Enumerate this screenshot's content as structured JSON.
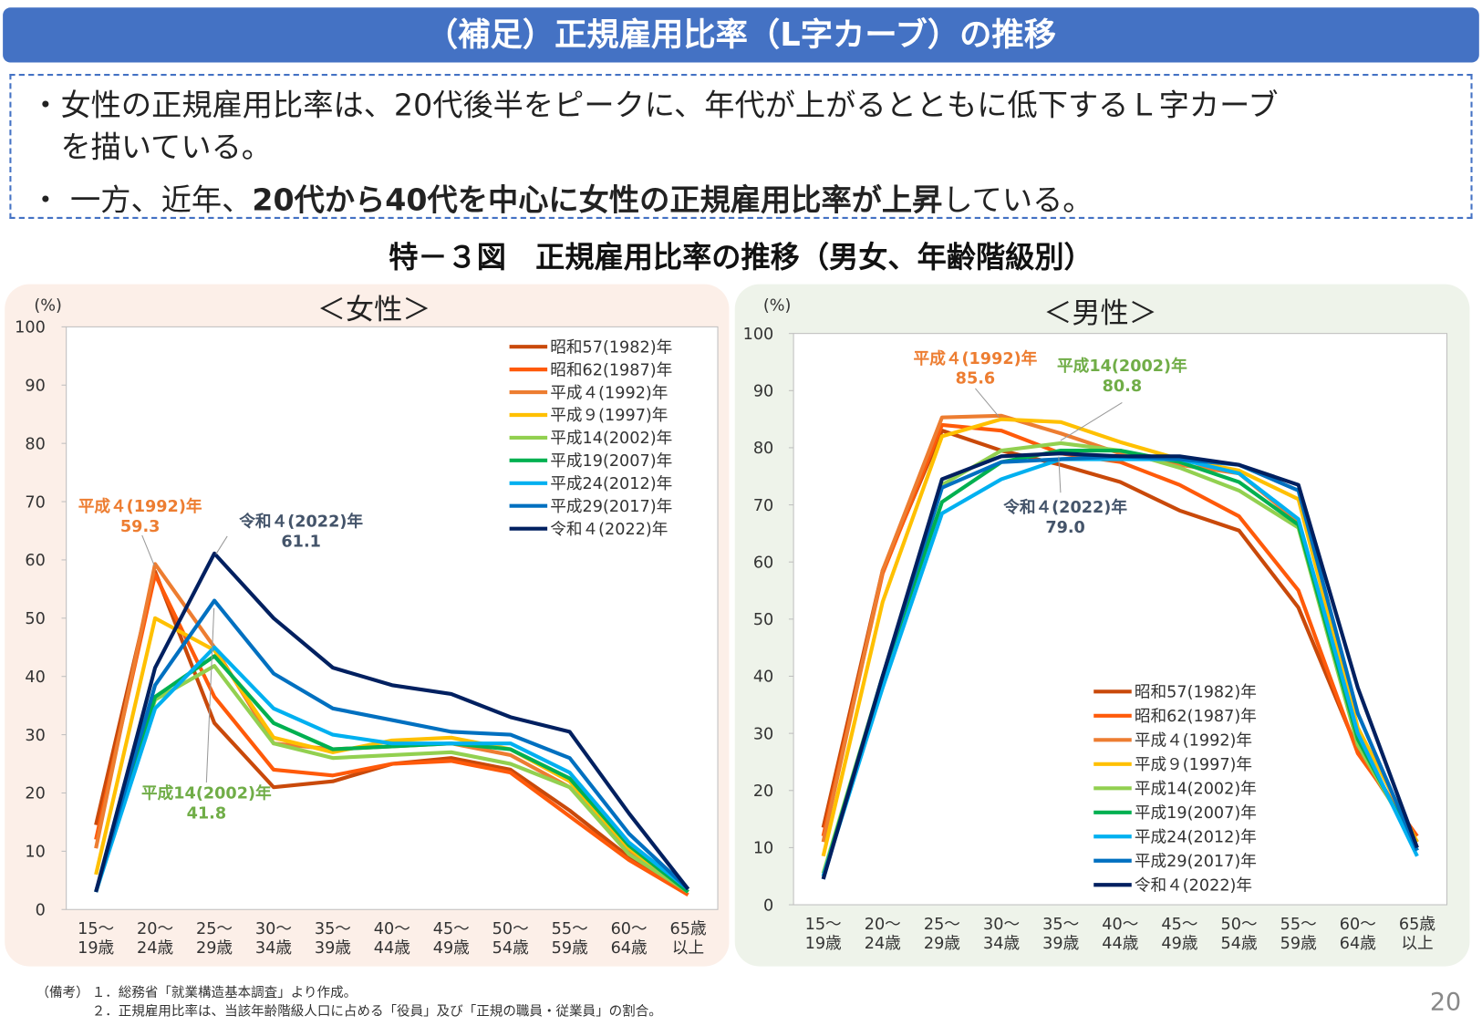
{
  "header": {
    "title": "（補足）正規雇用比率（L字カーブ）の推移"
  },
  "bullets": {
    "b1_line1": "・女性の正規雇用比率は、20代後半をピークに、年代が上がるとともに低下するＬ字カーブ",
    "b1_line2": "を描いている。",
    "b2_pre": "・ 一方、近年、",
    "b2_bold": "20代から40代を中心に女性の正規雇用比率が上昇",
    "b2_post": "している。"
  },
  "figure_title": "特－３図　正規雇用比率の推移（男女、年齢階級別）",
  "colors": {
    "title_bar": "#4472C4",
    "female_panel": "#FCEFE8",
    "male_panel": "#EEF3EA"
  },
  "chart_data": [
    {
      "type": "line",
      "title": "＜女性＞",
      "ylabel": "(%)",
      "ylim": [
        0,
        100
      ],
      "yticks": [
        0,
        10,
        20,
        30,
        40,
        50,
        60,
        70,
        80,
        90,
        100
      ],
      "grid": false,
      "legend": "top-right",
      "categories": [
        [
          "15～",
          "19歳"
        ],
        [
          "20～",
          "24歳"
        ],
        [
          "25～",
          "29歳"
        ],
        [
          "30～",
          "34歳"
        ],
        [
          "35～",
          "39歳"
        ],
        [
          "40～",
          "44歳"
        ],
        [
          "45～",
          "49歳"
        ],
        [
          "50～",
          "54歳"
        ],
        [
          "55～",
          "59歳"
        ],
        [
          "60～",
          "64歳"
        ],
        [
          "65歳",
          "以上"
        ]
      ],
      "series": [
        {
          "name": "昭和57(1982)年",
          "color": "#C9490A",
          "values": [
            14.5,
            58.0,
            32.0,
            21.0,
            22.0,
            25.0,
            26.0,
            24.0,
            17.0,
            9.0,
            3.0
          ]
        },
        {
          "name": "昭和62(1987)年",
          "color": "#FF5A0A",
          "values": [
            12.0,
            57.5,
            36.5,
            24.0,
            23.0,
            25.0,
            25.5,
            23.5,
            16.0,
            8.5,
            2.5
          ]
        },
        {
          "name": "平成４(1992)年",
          "color": "#ED7D31",
          "values": [
            10.5,
            59.3,
            45.0,
            28.5,
            27.5,
            28.0,
            28.5,
            26.5,
            21.0,
            10.0,
            3.0
          ]
        },
        {
          "name": "平成９(1997)年",
          "color": "#FFC000",
          "values": [
            6.0,
            50.0,
            44.5,
            29.5,
            27.0,
            29.0,
            29.5,
            27.5,
            22.0,
            10.5,
            3.0
          ]
        },
        {
          "name": "平成14(2002)年",
          "color": "#92D050",
          "values": [
            3.0,
            36.0,
            41.8,
            28.5,
            26.0,
            26.5,
            27.0,
            25.0,
            21.0,
            9.5,
            3.0
          ]
        },
        {
          "name": "平成19(2007)年",
          "color": "#00B050",
          "values": [
            3.0,
            36.5,
            43.5,
            32.0,
            27.5,
            28.0,
            28.5,
            27.5,
            22.5,
            11.0,
            3.0
          ]
        },
        {
          "name": "平成24(2012)年",
          "color": "#00B0F0",
          "values": [
            3.0,
            34.5,
            45.0,
            34.5,
            30.0,
            28.5,
            28.5,
            28.5,
            23.5,
            11.5,
            3.5
          ]
        },
        {
          "name": "平成29(2017)年",
          "color": "#0070C0",
          "values": [
            3.0,
            38.5,
            53.0,
            40.5,
            34.5,
            32.5,
            30.5,
            30.0,
            26.0,
            13.0,
            3.5
          ]
        },
        {
          "name": "令和４(2022)年",
          "color": "#002060",
          "values": [
            3.0,
            41.5,
            61.1,
            50.0,
            41.5,
            38.5,
            37.0,
            33.0,
            30.5,
            16.5,
            3.5
          ]
        }
      ],
      "annotations": [
        {
          "label": "平成４(1992)年",
          "value": "59.3",
          "color": "#ED7D31"
        },
        {
          "label": "令和４(2022)年",
          "value": "61.1",
          "color": "#44546A"
        },
        {
          "label": "平成14(2002)年",
          "value": "41.8",
          "color": "#70AD47"
        }
      ]
    },
    {
      "type": "line",
      "title": "＜男性＞",
      "ylabel": "(%)",
      "ylim": [
        0,
        100
      ],
      "yticks": [
        0,
        10,
        20,
        30,
        40,
        50,
        60,
        70,
        80,
        90,
        100
      ],
      "grid": false,
      "legend": "bottom-center",
      "categories": [
        [
          "15～",
          "19歳"
        ],
        [
          "20～",
          "24歳"
        ],
        [
          "25～",
          "29歳"
        ],
        [
          "30～",
          "34歳"
        ],
        [
          "35～",
          "39歳"
        ],
        [
          "40～",
          "44歳"
        ],
        [
          "45～",
          "49歳"
        ],
        [
          "50～",
          "54歳"
        ],
        [
          "55～",
          "59歳"
        ],
        [
          "60～",
          "64歳"
        ],
        [
          "65歳",
          "以上"
        ]
      ],
      "series": [
        {
          "name": "昭和57(1982)年",
          "color": "#C9490A",
          "values": [
            13.5,
            58.5,
            83.0,
            79.5,
            77.0,
            74.0,
            69.0,
            65.5,
            52.0,
            27.0,
            11.0
          ]
        },
        {
          "name": "昭和62(1987)年",
          "color": "#FF5A0A",
          "values": [
            12.0,
            58.0,
            84.0,
            83.0,
            79.0,
            77.5,
            73.5,
            68.0,
            55.0,
            26.5,
            12.0
          ]
        },
        {
          "name": "平成４(1992)年",
          "color": "#ED7D31",
          "values": [
            11.0,
            58.5,
            85.3,
            85.6,
            82.5,
            79.0,
            77.0,
            75.5,
            67.0,
            28.0,
            11.0
          ]
        },
        {
          "name": "平成９(1997)年",
          "color": "#FFC000",
          "values": [
            8.5,
            53.0,
            82.0,
            85.0,
            84.5,
            81.0,
            78.0,
            76.0,
            71.0,
            31.0,
            11.0
          ]
        },
        {
          "name": "平成14(2002)年",
          "color": "#92D050",
          "values": [
            5.5,
            40.0,
            73.5,
            79.5,
            80.8,
            79.5,
            76.5,
            72.5,
            66.0,
            28.0,
            10.0
          ]
        },
        {
          "name": "平成19(2007)年",
          "color": "#00B050",
          "values": [
            5.0,
            40.0,
            70.5,
            77.5,
            79.5,
            79.5,
            77.5,
            74.0,
            66.5,
            29.0,
            9.5
          ]
        },
        {
          "name": "平成24(2012)年",
          "color": "#00B0F0",
          "values": [
            5.0,
            38.0,
            68.5,
            74.5,
            78.0,
            78.0,
            78.0,
            75.5,
            67.5,
            30.0,
            8.5
          ]
        },
        {
          "name": "平成29(2017)年",
          "color": "#0070C0",
          "values": [
            4.5,
            40.0,
            73.0,
            77.5,
            78.0,
            78.5,
            78.0,
            77.0,
            72.5,
            33.5,
            9.5
          ]
        },
        {
          "name": "令和４(2022)年",
          "color": "#002060",
          "values": [
            4.5,
            40.0,
            74.5,
            78.5,
            79.0,
            78.5,
            78.5,
            77.0,
            73.5,
            38.0,
            10.0
          ]
        }
      ],
      "annotations": [
        {
          "label": "平成４(1992)年",
          "value": "85.6",
          "color": "#ED7D31"
        },
        {
          "label": "平成14(2002)年",
          "value": "80.8",
          "color": "#70AD47"
        },
        {
          "label": "令和４(2022)年",
          "value": "79.0",
          "color": "#44546A"
        }
      ]
    }
  ],
  "notes": {
    "label": "（備考）",
    "n1": "１．総務省「就業構造基本調査」より作成。",
    "n2": "２．正規雇用比率は、当該年齢階級人口に占める「役員」及び「正規の職員・従業員」の割合。"
  },
  "page_number": "20"
}
